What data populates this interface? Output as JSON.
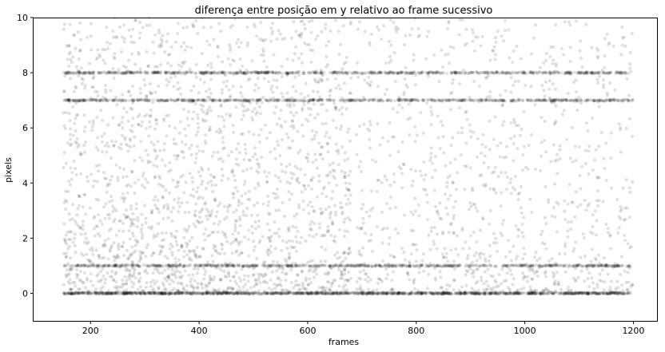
{
  "chart_data": {
    "type": "scatter",
    "title": "diferença entre posição em y relativo ao frame sucessivo",
    "xlabel": "frames",
    "ylabel": "pixels",
    "xlim": [
      95,
      1245
    ],
    "ylim": [
      -1,
      10
    ],
    "x_ticks": [
      200,
      400,
      600,
      800,
      1000,
      1200
    ],
    "y_ticks": [
      0,
      2,
      4,
      6,
      8,
      10
    ],
    "grid": false,
    "marker_color": "#000000",
    "marker_alpha": 0.12,
    "bands": [
      {
        "y": 0,
        "x_start": 150,
        "x_end": 1195,
        "density": "very high"
      },
      {
        "y": 1,
        "x_start": 150,
        "x_end": 1195,
        "density": "high"
      },
      {
        "y": 7,
        "x_start": 150,
        "x_end": 1200,
        "density": "high"
      },
      {
        "y": 8,
        "x_start": 150,
        "x_end": 1195,
        "density": "high"
      }
    ],
    "clusters": [
      {
        "x_start": 150,
        "x_end": 680,
        "y_min": 0,
        "y_max": 10,
        "density": "high"
      },
      {
        "x_start": 690,
        "x_end": 1200,
        "y_min": 0,
        "y_max": 10,
        "density": "medium"
      }
    ]
  }
}
